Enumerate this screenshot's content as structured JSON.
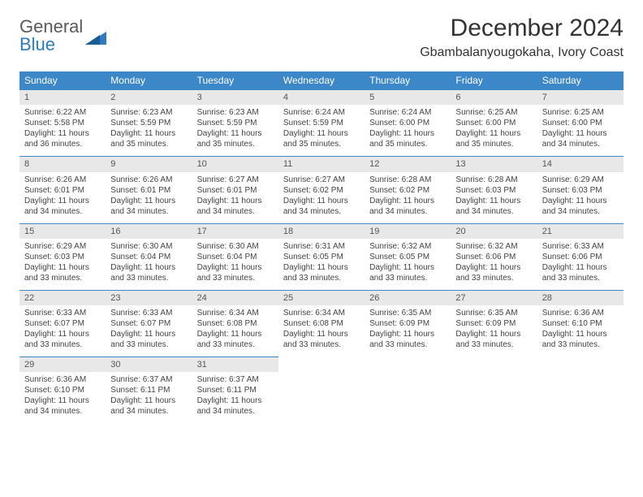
{
  "brand": {
    "word1": "General",
    "word2": "Blue"
  },
  "title": {
    "month": "December 2024",
    "location": "Gbambalanyougokaha, Ivory Coast"
  },
  "colors": {
    "header_bg": "#3b87c8",
    "daynum_bg": "#e8e8e8",
    "rule": "#3b87c8"
  },
  "weekdays": [
    "Sunday",
    "Monday",
    "Tuesday",
    "Wednesday",
    "Thursday",
    "Friday",
    "Saturday"
  ],
  "weeks": [
    [
      {
        "n": "1",
        "sunrise": "Sunrise: 6:22 AM",
        "sunset": "Sunset: 5:58 PM",
        "daylight": "Daylight: 11 hours and 36 minutes."
      },
      {
        "n": "2",
        "sunrise": "Sunrise: 6:23 AM",
        "sunset": "Sunset: 5:59 PM",
        "daylight": "Daylight: 11 hours and 35 minutes."
      },
      {
        "n": "3",
        "sunrise": "Sunrise: 6:23 AM",
        "sunset": "Sunset: 5:59 PM",
        "daylight": "Daylight: 11 hours and 35 minutes."
      },
      {
        "n": "4",
        "sunrise": "Sunrise: 6:24 AM",
        "sunset": "Sunset: 5:59 PM",
        "daylight": "Daylight: 11 hours and 35 minutes."
      },
      {
        "n": "5",
        "sunrise": "Sunrise: 6:24 AM",
        "sunset": "Sunset: 6:00 PM",
        "daylight": "Daylight: 11 hours and 35 minutes."
      },
      {
        "n": "6",
        "sunrise": "Sunrise: 6:25 AM",
        "sunset": "Sunset: 6:00 PM",
        "daylight": "Daylight: 11 hours and 35 minutes."
      },
      {
        "n": "7",
        "sunrise": "Sunrise: 6:25 AM",
        "sunset": "Sunset: 6:00 PM",
        "daylight": "Daylight: 11 hours and 34 minutes."
      }
    ],
    [
      {
        "n": "8",
        "sunrise": "Sunrise: 6:26 AM",
        "sunset": "Sunset: 6:01 PM",
        "daylight": "Daylight: 11 hours and 34 minutes."
      },
      {
        "n": "9",
        "sunrise": "Sunrise: 6:26 AM",
        "sunset": "Sunset: 6:01 PM",
        "daylight": "Daylight: 11 hours and 34 minutes."
      },
      {
        "n": "10",
        "sunrise": "Sunrise: 6:27 AM",
        "sunset": "Sunset: 6:01 PM",
        "daylight": "Daylight: 11 hours and 34 minutes."
      },
      {
        "n": "11",
        "sunrise": "Sunrise: 6:27 AM",
        "sunset": "Sunset: 6:02 PM",
        "daylight": "Daylight: 11 hours and 34 minutes."
      },
      {
        "n": "12",
        "sunrise": "Sunrise: 6:28 AM",
        "sunset": "Sunset: 6:02 PM",
        "daylight": "Daylight: 11 hours and 34 minutes."
      },
      {
        "n": "13",
        "sunrise": "Sunrise: 6:28 AM",
        "sunset": "Sunset: 6:03 PM",
        "daylight": "Daylight: 11 hours and 34 minutes."
      },
      {
        "n": "14",
        "sunrise": "Sunrise: 6:29 AM",
        "sunset": "Sunset: 6:03 PM",
        "daylight": "Daylight: 11 hours and 34 minutes."
      }
    ],
    [
      {
        "n": "15",
        "sunrise": "Sunrise: 6:29 AM",
        "sunset": "Sunset: 6:03 PM",
        "daylight": "Daylight: 11 hours and 33 minutes."
      },
      {
        "n": "16",
        "sunrise": "Sunrise: 6:30 AM",
        "sunset": "Sunset: 6:04 PM",
        "daylight": "Daylight: 11 hours and 33 minutes."
      },
      {
        "n": "17",
        "sunrise": "Sunrise: 6:30 AM",
        "sunset": "Sunset: 6:04 PM",
        "daylight": "Daylight: 11 hours and 33 minutes."
      },
      {
        "n": "18",
        "sunrise": "Sunrise: 6:31 AM",
        "sunset": "Sunset: 6:05 PM",
        "daylight": "Daylight: 11 hours and 33 minutes."
      },
      {
        "n": "19",
        "sunrise": "Sunrise: 6:32 AM",
        "sunset": "Sunset: 6:05 PM",
        "daylight": "Daylight: 11 hours and 33 minutes."
      },
      {
        "n": "20",
        "sunrise": "Sunrise: 6:32 AM",
        "sunset": "Sunset: 6:06 PM",
        "daylight": "Daylight: 11 hours and 33 minutes."
      },
      {
        "n": "21",
        "sunrise": "Sunrise: 6:33 AM",
        "sunset": "Sunset: 6:06 PM",
        "daylight": "Daylight: 11 hours and 33 minutes."
      }
    ],
    [
      {
        "n": "22",
        "sunrise": "Sunrise: 6:33 AM",
        "sunset": "Sunset: 6:07 PM",
        "daylight": "Daylight: 11 hours and 33 minutes."
      },
      {
        "n": "23",
        "sunrise": "Sunrise: 6:33 AM",
        "sunset": "Sunset: 6:07 PM",
        "daylight": "Daylight: 11 hours and 33 minutes."
      },
      {
        "n": "24",
        "sunrise": "Sunrise: 6:34 AM",
        "sunset": "Sunset: 6:08 PM",
        "daylight": "Daylight: 11 hours and 33 minutes."
      },
      {
        "n": "25",
        "sunrise": "Sunrise: 6:34 AM",
        "sunset": "Sunset: 6:08 PM",
        "daylight": "Daylight: 11 hours and 33 minutes."
      },
      {
        "n": "26",
        "sunrise": "Sunrise: 6:35 AM",
        "sunset": "Sunset: 6:09 PM",
        "daylight": "Daylight: 11 hours and 33 minutes."
      },
      {
        "n": "27",
        "sunrise": "Sunrise: 6:35 AM",
        "sunset": "Sunset: 6:09 PM",
        "daylight": "Daylight: 11 hours and 33 minutes."
      },
      {
        "n": "28",
        "sunrise": "Sunrise: 6:36 AM",
        "sunset": "Sunset: 6:10 PM",
        "daylight": "Daylight: 11 hours and 33 minutes."
      }
    ],
    [
      {
        "n": "29",
        "sunrise": "Sunrise: 6:36 AM",
        "sunset": "Sunset: 6:10 PM",
        "daylight": "Daylight: 11 hours and 34 minutes."
      },
      {
        "n": "30",
        "sunrise": "Sunrise: 6:37 AM",
        "sunset": "Sunset: 6:11 PM",
        "daylight": "Daylight: 11 hours and 34 minutes."
      },
      {
        "n": "31",
        "sunrise": "Sunrise: 6:37 AM",
        "sunset": "Sunset: 6:11 PM",
        "daylight": "Daylight: 11 hours and 34 minutes."
      },
      null,
      null,
      null,
      null
    ]
  ]
}
